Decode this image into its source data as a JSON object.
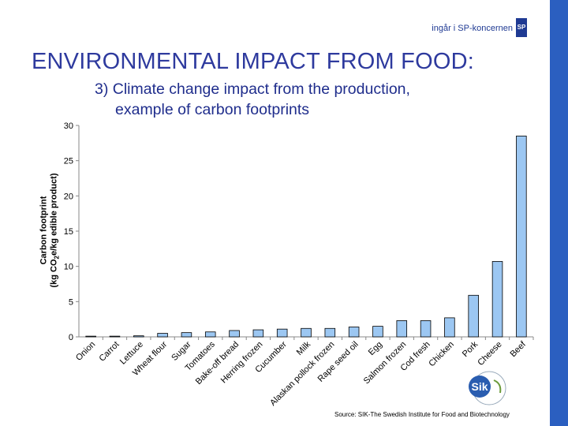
{
  "header": {
    "brand_text": "ingår i SP-koncernen",
    "sp_logo_text": "SP",
    "title": "ENVIRONMENTAL IMPACT FROM FOOD:",
    "subtitle_line1": "3) Climate change impact from the production,",
    "subtitle_line2": "example of carbon footprints"
  },
  "footer": {
    "source": "Source: SIK-The Swedish Institute for Food and Biotechnology",
    "logo_text": "Sik"
  },
  "colors": {
    "title": "#2e3a9e",
    "bar_fill": "#9cc7f2",
    "bar_stroke": "#000000",
    "right_bar": "#2b5fc0"
  },
  "chart_data": {
    "type": "bar",
    "categories": [
      "Onion",
      "Carrot",
      "Lettuce",
      "Wheat flour",
      "Sugar",
      "Tomatoes",
      "Bake-off bread",
      "Herring frozen",
      "Cucumber",
      "Milk",
      "Alaskan pollock frozen",
      "Rape seed oil",
      "Egg",
      "Salmon frozen",
      "Cod fresh",
      "Chicken",
      "Pork",
      "Cheese",
      "Beef"
    ],
    "values": [
      0.1,
      0.1,
      0.15,
      0.5,
      0.6,
      0.7,
      0.9,
      1.0,
      1.1,
      1.2,
      1.2,
      1.4,
      1.5,
      2.3,
      2.3,
      2.7,
      5.9,
      10.7,
      28.5
    ],
    "ylim": [
      0,
      30
    ],
    "yticks": [
      "0",
      "5",
      "10",
      "15",
      "20",
      "25",
      "30"
    ],
    "ylabel_line1": "Carbon footprint",
    "ylabel_line2_pre": "(kg CO",
    "ylabel_line2_sub": "2",
    "ylabel_line2_post": "e/kg edible product)",
    "grid": false
  }
}
